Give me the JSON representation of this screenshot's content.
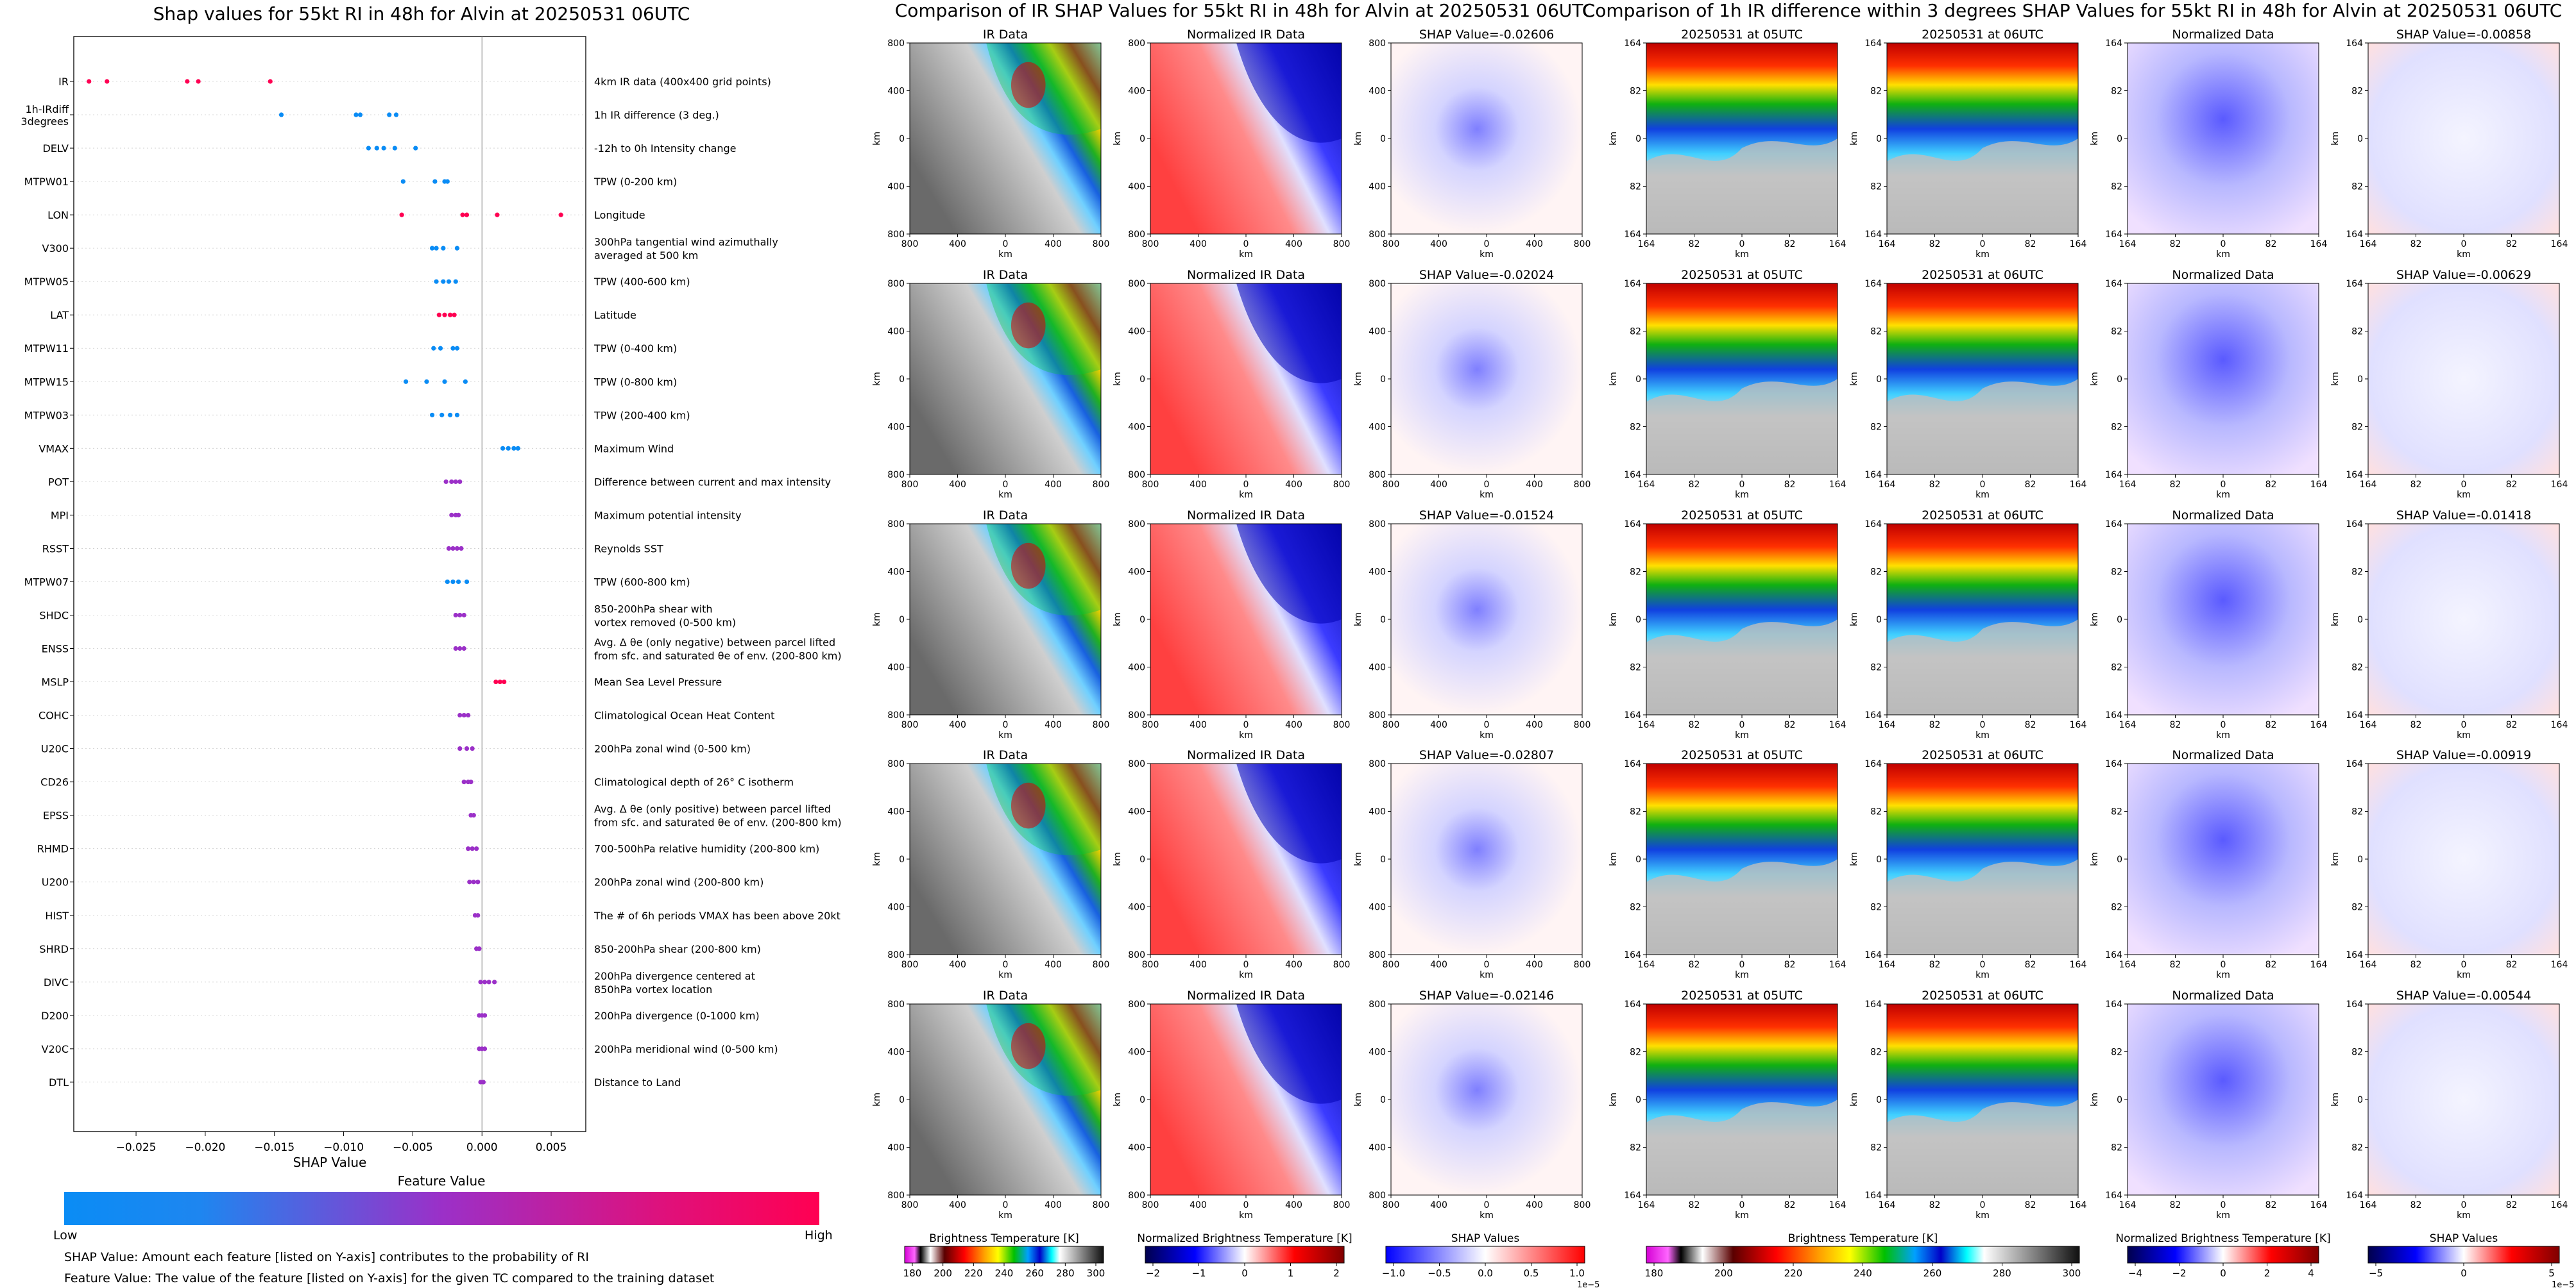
{
  "colors": {
    "low": "#0a8cf5",
    "mid": "#9b30c8",
    "high": "#ff0052"
  },
  "left": {
    "title": "Shap values for 55kt RI in 48h for Alvin at 20250531 06UTC",
    "xlabel": "SHAP Value",
    "colorbar": {
      "title": "Feature Value",
      "low": "Low",
      "high": "High"
    },
    "note1": "SHAP Value: Amount each feature [listed on Y-axis] contributes to the probability of RI",
    "note2": "Feature Value: The value of the feature [listed on Y-axis] for the given TC compared to the training dataset"
  },
  "chart_data": [
    {
      "type": "scatter",
      "title": "Shap values for 55kt RI in 48h for Alvin at 20250531 06UTC",
      "xlabel": "SHAP Value",
      "xlim": [
        -0.0295,
        0.0075
      ],
      "xticks": [
        -0.025,
        -0.02,
        -0.015,
        -0.01,
        -0.005,
        0.0,
        0.005
      ],
      "xtick_labels": [
        "−0.025",
        "−0.020",
        "−0.015",
        "−0.010",
        "−0.005",
        "0.000",
        "0.005"
      ],
      "features": [
        {
          "name": "IR",
          "desc": [
            "4km IR data (400x400 grid points)"
          ],
          "values": [
            -0.0284,
            -0.0271,
            -0.0213,
            -0.0205,
            -0.0153
          ],
          "color": "high"
        },
        {
          "name": [
            "1h-IRdiff",
            "3degrees"
          ],
          "desc": [
            "1h IR difference (3 deg.)"
          ],
          "values": [
            -0.0145,
            -0.0091,
            -0.0088,
            -0.0067,
            -0.0062
          ],
          "color": "low"
        },
        {
          "name": "DELV",
          "desc": [
            "-12h to 0h Intensity change"
          ],
          "values": [
            -0.0082,
            -0.0076,
            -0.0071,
            -0.0063,
            -0.0048
          ],
          "color": "low"
        },
        {
          "name": "MTPW01",
          "desc": [
            "TPW (0-200 km)"
          ],
          "values": [
            -0.0057,
            -0.0034,
            -0.0027,
            -0.0025
          ],
          "color": "low"
        },
        {
          "name": "LON",
          "desc": [
            "Longitude"
          ],
          "values": [
            -0.0058,
            -0.0014,
            -0.0011,
            0.0011,
            0.0057
          ],
          "color": "high"
        },
        {
          "name": "V300",
          "desc": [
            "300hPa tangential wind azimuthally",
            "averaged at 500 km"
          ],
          "values": [
            -0.0036,
            -0.0033,
            -0.0028,
            -0.0018
          ],
          "color": "low"
        },
        {
          "name": "MTPW05",
          "desc": [
            "TPW (400-600 km)"
          ],
          "values": [
            -0.0033,
            -0.0028,
            -0.0024,
            -0.0019
          ],
          "color": "low"
        },
        {
          "name": "LAT",
          "desc": [
            "Latitude"
          ],
          "values": [
            -0.0031,
            -0.0027,
            -0.0023,
            -0.002
          ],
          "color": "high"
        },
        {
          "name": "MTPW11",
          "desc": [
            "TPW (0-400 km)"
          ],
          "values": [
            -0.0035,
            -0.003,
            -0.0021,
            -0.0018
          ],
          "color": "low"
        },
        {
          "name": "MTPW15",
          "desc": [
            "TPW (0-800 km)"
          ],
          "values": [
            -0.0055,
            -0.004,
            -0.0027,
            -0.0012
          ],
          "color": "low"
        },
        {
          "name": "MTPW03",
          "desc": [
            "TPW (200-400 km)"
          ],
          "values": [
            -0.0036,
            -0.0029,
            -0.0023,
            -0.0018
          ],
          "color": "low"
        },
        {
          "name": "VMAX",
          "desc": [
            "Maximum Wind"
          ],
          "values": [
            0.0015,
            0.0019,
            0.0023,
            0.0026
          ],
          "color": "low"
        },
        {
          "name": "POT",
          "desc": [
            "Difference between current and max intensity"
          ],
          "values": [
            -0.0026,
            -0.0022,
            -0.0019,
            -0.0016
          ],
          "color": "mid"
        },
        {
          "name": "MPI",
          "desc": [
            "Maximum potential intensity"
          ],
          "values": [
            -0.0022,
            -0.0019,
            -0.0017
          ],
          "color": "mid"
        },
        {
          "name": "RSST",
          "desc": [
            "Reynolds SST"
          ],
          "values": [
            -0.0024,
            -0.0021,
            -0.0018,
            -0.0015
          ],
          "color": "mid"
        },
        {
          "name": "MTPW07",
          "desc": [
            "TPW (600-800 km)"
          ],
          "values": [
            -0.0025,
            -0.0021,
            -0.0017,
            -0.0011
          ],
          "color": "low"
        },
        {
          "name": "SHDC",
          "desc": [
            "850-200hPa shear with",
            "vortex removed (0-500 km)"
          ],
          "values": [
            -0.0019,
            -0.0016,
            -0.0013
          ],
          "color": "mid"
        },
        {
          "name": "ENSS",
          "desc": [
            "Avg. Δ θe (only negative) between parcel lifted",
            "from sfc. and saturated θe of env. (200-800 km)"
          ],
          "values": [
            -0.0019,
            -0.0016,
            -0.0013
          ],
          "color": "mid"
        },
        {
          "name": "MSLP",
          "desc": [
            "Mean Sea Level Pressure"
          ],
          "values": [
            0.001,
            0.0013,
            0.0016
          ],
          "color": "high"
        },
        {
          "name": "COHC",
          "desc": [
            "Climatological Ocean Heat Content"
          ],
          "values": [
            -0.0016,
            -0.0013,
            -0.001
          ],
          "color": "mid"
        },
        {
          "name": "U20C",
          "desc": [
            "200hPa zonal wind (0-500 km)"
          ],
          "values": [
            -0.0016,
            -0.0011,
            -0.0007
          ],
          "color": "mid"
        },
        {
          "name": "CD26",
          "desc": [
            "Climatological depth of 26° C isotherm"
          ],
          "values": [
            -0.0013,
            -0.001,
            -0.0008
          ],
          "color": "mid"
        },
        {
          "name": "EPSS",
          "desc": [
            "Avg. Δ θe (only positive) between parcel lifted",
            "from sfc. and saturated θe of env. (200-800 km)"
          ],
          "values": [
            -0.0008,
            -0.0006
          ],
          "color": "mid"
        },
        {
          "name": "RHMD",
          "desc": [
            "700-500hPa relative humidity (200-800 km)"
          ],
          "values": [
            -0.001,
            -0.0007,
            -0.0004
          ],
          "color": "mid"
        },
        {
          "name": "U200",
          "desc": [
            "200hPa zonal wind (200-800 km)"
          ],
          "values": [
            -0.0009,
            -0.0006,
            -0.0003
          ],
          "color": "mid"
        },
        {
          "name": "HIST",
          "desc": [
            "The # of 6h periods VMAX has been above 20kt"
          ],
          "values": [
            -0.0005,
            -0.0003
          ],
          "color": "mid"
        },
        {
          "name": "SHRD",
          "desc": [
            "850-200hPa shear (200-800 km)"
          ],
          "values": [
            -0.0004,
            -0.0002
          ],
          "color": "mid"
        },
        {
          "name": "DIVC",
          "desc": [
            "200hPa divergence centered at",
            "850hPa vortex location"
          ],
          "values": [
            -0.0001,
            0.0002,
            0.0005,
            0.0009
          ],
          "color": "mid"
        },
        {
          "name": "D200",
          "desc": [
            "200hPa divergence (0-1000 km)"
          ],
          "values": [
            -0.0002,
            0.0,
            0.0002
          ],
          "color": "mid"
        },
        {
          "name": "V20C",
          "desc": [
            "200hPa meridional wind (0-500 km)"
          ],
          "values": [
            -0.0002,
            0.0,
            0.0002
          ],
          "color": "mid"
        },
        {
          "name": "DTL",
          "desc": [
            "Distance to Land"
          ],
          "values": [
            -0.0001,
            0.0001
          ],
          "color": "mid"
        }
      ]
    }
  ],
  "middle": {
    "title": "Comparison of IR SHAP Values for 55kt RI in 48h for Alvin at 20250531 06UTC",
    "col_titles": [
      "IR Data",
      "Normalized IR Data"
    ],
    "shap_titles": [
      "SHAP Value=-0.02606",
      "SHAP Value=-0.02024",
      "SHAP Value=-0.01524",
      "SHAP Value=-0.02807",
      "SHAP Value=-0.02146"
    ],
    "ticks": [
      "800",
      "400",
      "0",
      "400",
      "800"
    ],
    "axis_label": "km",
    "colorbars": [
      {
        "label": "Brightness Temperature [K]",
        "ticks": [
          "180",
          "200",
          "220",
          "240",
          "260",
          "280",
          "300"
        ],
        "exp": ""
      },
      {
        "label": "Normalized Brightness Temperature [K]",
        "ticks": [
          "−2",
          "−1",
          "0",
          "1",
          "2"
        ],
        "exp": ""
      },
      {
        "label": "SHAP Values",
        "ticks": [
          "−1.0",
          "−0.5",
          "0.0",
          "0.5",
          "1.0"
        ],
        "exp": "1e−5"
      }
    ]
  },
  "right": {
    "title": "Comparison of 1h IR difference within 3 degrees SHAP Values for 55kt RI in 48h for Alvin at 20250531 06UTC",
    "col_titles": [
      "20250531 at 05UTC",
      "20250531 at 06UTC",
      "Normalized Data"
    ],
    "shap_titles": [
      "SHAP Value=-0.00858",
      "SHAP Value=-0.00629",
      "SHAP Value=-0.01418",
      "SHAP Value=-0.00919",
      "SHAP Value=-0.00544"
    ],
    "ticks": [
      "164",
      "82",
      "0",
      "82",
      "164"
    ],
    "axis_label": "km",
    "colorbars": [
      {
        "label": "Brightness Temperature [K]",
        "ticks": [
          "180",
          "200",
          "220",
          "240",
          "260",
          "280",
          "300"
        ],
        "exp": ""
      },
      {
        "label": "Normalized Brightness Temperature [K]",
        "ticks": [
          "−4",
          "−2",
          "0",
          "2",
          "4"
        ],
        "exp": ""
      },
      {
        "label": "SHAP Values",
        "ticks": [
          "−5",
          "0",
          "5"
        ],
        "exp": "1e−5"
      }
    ]
  }
}
